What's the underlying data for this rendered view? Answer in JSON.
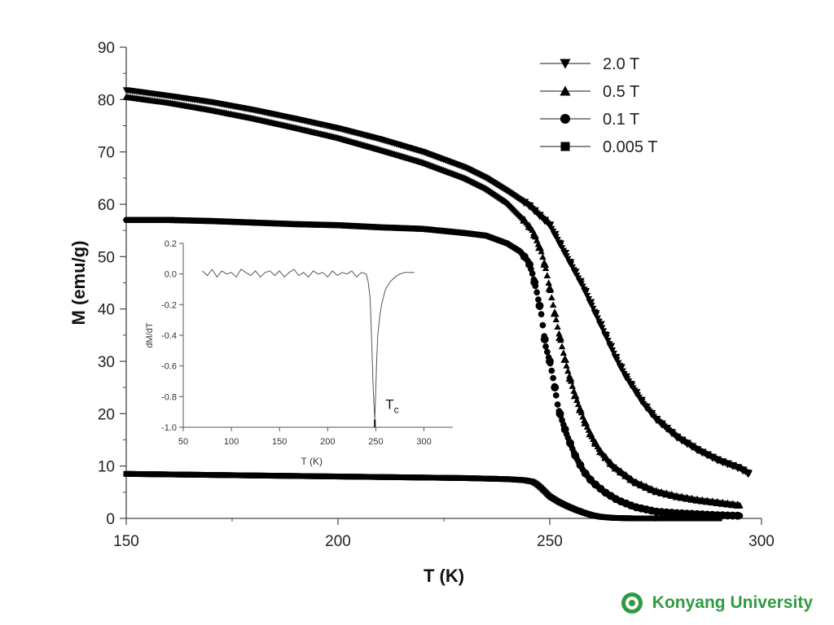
{
  "footer": {
    "logo_icon": "university-seal-icon",
    "text": "Konyang University",
    "color": "#2e9b42"
  },
  "chart_data": [
    {
      "type": "scatter",
      "xlabel": "T (K)",
      "ylabel": "M (emu/g)",
      "xlim": [
        150,
        300
      ],
      "ylim": [
        0,
        90
      ],
      "xticks": [
        150,
        200,
        250,
        300
      ],
      "yticks": [
        0,
        10,
        20,
        30,
        40,
        50,
        60,
        70,
        80,
        90
      ],
      "grid": false,
      "legend_position": "top-right",
      "series": [
        {
          "name": "2.0 T",
          "marker": "triangle-down",
          "color": "#000000",
          "x": [
            150,
            160,
            170,
            180,
            190,
            200,
            210,
            220,
            230,
            235,
            240,
            245,
            250,
            252,
            254,
            256,
            258,
            260,
            262,
            264,
            266,
            268,
            270,
            272,
            275,
            280,
            285,
            290,
            295,
            297
          ],
          "y": [
            81.8,
            80.7,
            79.5,
            78,
            76.3,
            74.5,
            72.4,
            70,
            67,
            65,
            62.5,
            59.8,
            56,
            53,
            50,
            47,
            44,
            40.5,
            37,
            33.5,
            30,
            27,
            24.5,
            22,
            19,
            15.5,
            13,
            11,
            9.5,
            8.5
          ]
        },
        {
          "name": "0.5 T",
          "marker": "triangle-up",
          "color": "#000000",
          "x": [
            150,
            160,
            170,
            180,
            190,
            200,
            210,
            220,
            230,
            235,
            240,
            244,
            246,
            248,
            249,
            250,
            251,
            252,
            253,
            254,
            256,
            258,
            260,
            262,
            265,
            270,
            275,
            280,
            285,
            290,
            295
          ],
          "y": [
            80.5,
            79.4,
            78,
            76.4,
            74.6,
            72.7,
            70.4,
            68,
            65,
            63,
            60.3,
            57,
            55,
            51,
            48,
            44,
            40,
            36,
            32.5,
            29,
            23.5,
            19,
            15.5,
            12.8,
            10,
            7,
            5.2,
            4.2,
            3.5,
            3,
            2.5
          ]
        },
        {
          "name": "0.1 T",
          "marker": "circle",
          "color": "#000000",
          "x": [
            150,
            160,
            170,
            180,
            190,
            200,
            210,
            220,
            230,
            235,
            240,
            243,
            245,
            246,
            247,
            248,
            249,
            250,
            251,
            252,
            254,
            256,
            258,
            260,
            263,
            266,
            270,
            275,
            280,
            285,
            290,
            295
          ],
          "y": [
            57,
            57,
            56.8,
            56.5,
            56.2,
            56,
            55.6,
            55.3,
            54.5,
            54,
            52.5,
            51,
            49,
            46.5,
            43,
            39,
            33,
            30,
            26,
            21,
            16,
            12,
            9,
            7,
            5,
            3.5,
            2.2,
            1.3,
            1,
            0.8,
            0.6,
            0.5
          ]
        },
        {
          "name": "0.005 T",
          "marker": "square",
          "color": "#000000",
          "x": [
            150,
            160,
            170,
            180,
            190,
            200,
            210,
            220,
            230,
            240,
            244,
            246,
            247,
            248,
            249,
            250,
            252,
            254,
            256,
            258,
            260,
            262,
            265,
            270,
            280,
            290
          ],
          "y": [
            8.5,
            8.4,
            8.3,
            8.2,
            8.1,
            8,
            7.9,
            7.8,
            7.7,
            7.5,
            7.3,
            7,
            6.5,
            5.8,
            5,
            4.2,
            3.2,
            2.4,
            1.7,
            1.1,
            0.6,
            0.3,
            0.1,
            0,
            0,
            0
          ]
        }
      ]
    },
    {
      "type": "line",
      "inset": true,
      "xlabel": "T (K)",
      "ylabel": "dM/dT",
      "xlim": [
        50,
        330
      ],
      "ylim": [
        -1.0,
        0.2
      ],
      "xticks": [
        50,
        100,
        150,
        200,
        250,
        300
      ],
      "yticks": [
        -1.0,
        -0.8,
        -0.6,
        -0.4,
        -0.2,
        0.0,
        0.2
      ],
      "annotation": "T",
      "annotation_subscript": "c",
      "series": [
        {
          "color": "#555555",
          "x": [
            70,
            75,
            80,
            85,
            90,
            95,
            100,
            105,
            110,
            115,
            120,
            125,
            130,
            135,
            140,
            145,
            150,
            155,
            160,
            165,
            170,
            175,
            180,
            185,
            190,
            195,
            200,
            205,
            210,
            215,
            220,
            225,
            230,
            235,
            240,
            242,
            244,
            245,
            246,
            247,
            248,
            249,
            250,
            251,
            252,
            254,
            256,
            258,
            260,
            265,
            270,
            275,
            280,
            285,
            290
          ],
          "y": [
            0.02,
            -0.01,
            0.03,
            -0.02,
            0.02,
            0,
            0.01,
            -0.02,
            0.03,
            0.01,
            -0.01,
            0.02,
            -0.02,
            0.01,
            0.02,
            -0.01,
            0.02,
            -0.02,
            0.01,
            0.03,
            -0.01,
            0.01,
            -0.02,
            0.02,
            0,
            0.01,
            -0.02,
            0.02,
            -0.01,
            0.01,
            0,
            0.02,
            -0.02,
            0.01,
            0,
            -0.05,
            -0.15,
            -0.3,
            -0.5,
            -0.7,
            -0.85,
            -0.95,
            -0.75,
            -0.55,
            -0.4,
            -0.28,
            -0.2,
            -0.15,
            -0.1,
            -0.05,
            -0.02,
            0,
            0.01,
            0.01,
            0.01
          ]
        }
      ]
    }
  ]
}
